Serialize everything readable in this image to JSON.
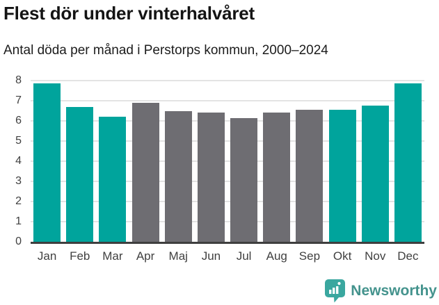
{
  "header": {
    "title": "Flest dör under vinterhalvåret",
    "subtitle": "Antal döda per månad i Perstorps kommun, 2000–2024"
  },
  "chart_data": {
    "type": "bar",
    "title": "Flest dör under vinterhalvåret",
    "subtitle": "Antal döda per månad i Perstorps kommun, 2000–2024",
    "categories": [
      "Jan",
      "Feb",
      "Mar",
      "Apr",
      "Maj",
      "Jun",
      "Jul",
      "Aug",
      "Sep",
      "Okt",
      "Nov",
      "Dec"
    ],
    "values": [
      7.85,
      6.7,
      6.2,
      6.9,
      6.5,
      6.4,
      6.15,
      6.4,
      6.55,
      6.55,
      6.75,
      7.85
    ],
    "bar_colors": [
      "highlight",
      "highlight",
      "highlight",
      "other",
      "other",
      "other",
      "other",
      "other",
      "other",
      "highlight",
      "highlight",
      "highlight"
    ],
    "xlabel": "",
    "ylabel": "",
    "ylim": [
      0,
      8
    ],
    "yticks": [
      0,
      1,
      2,
      3,
      4,
      5,
      6,
      7,
      8
    ],
    "grid": true,
    "legend": "none",
    "colors": {
      "highlight": "#00a49c",
      "other": "#6e6d72"
    }
  },
  "footer": {
    "brand": "Newsworthy",
    "brand_color": "#44938d",
    "logo_color": "#3aa79f"
  }
}
